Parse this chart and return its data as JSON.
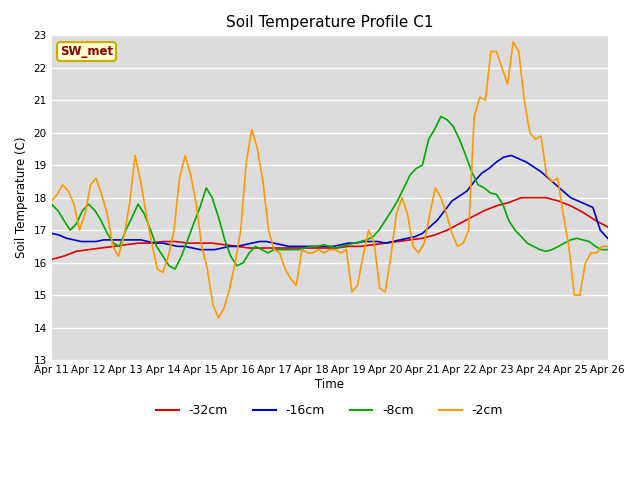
{
  "title": "Soil Temperature Profile C1",
  "xlabel": "Time",
  "ylabel": "Soil Temperature (C)",
  "annotation": "SW_met",
  "ylim": [
    13.0,
    23.0
  ],
  "yticks": [
    13.0,
    14.0,
    15.0,
    16.0,
    17.0,
    18.0,
    19.0,
    20.0,
    21.0,
    22.0,
    23.0
  ],
  "x_labels": [
    "Apr 11",
    "Apr 12",
    "Apr 13",
    "Apr 14",
    "Apr 15",
    "Apr 16",
    "Apr 17",
    "Apr 18",
    "Apr 19",
    "Apr 20",
    "Apr 21",
    "Apr 22",
    "Apr 23",
    "Apr 24",
    "Apr 25",
    "Apr 26"
  ],
  "background_color": "#dcdcdc",
  "series": {
    "-32cm": {
      "color": "#dd0000",
      "x": [
        0,
        0.33,
        0.67,
        1,
        1.33,
        1.67,
        2,
        2.33,
        2.67,
        3,
        3.33,
        3.67,
        4,
        4.33,
        4.67,
        5,
        5.33,
        5.67,
        6,
        6.33,
        6.67,
        7,
        7.33,
        7.67,
        8,
        8.33,
        8.67,
        9,
        9.33,
        9.67,
        10,
        10.33,
        10.67,
        11,
        11.33,
        11.67,
        12,
        12.33,
        12.67,
        13,
        13.33,
        13.67,
        14,
        14.33,
        14.67,
        15
      ],
      "y": [
        16.1,
        16.2,
        16.35,
        16.4,
        16.45,
        16.5,
        16.55,
        16.6,
        16.6,
        16.65,
        16.65,
        16.6,
        16.6,
        16.6,
        16.55,
        16.5,
        16.45,
        16.45,
        16.45,
        16.45,
        16.45,
        16.45,
        16.45,
        16.45,
        16.5,
        16.5,
        16.55,
        16.6,
        16.65,
        16.7,
        16.75,
        16.85,
        17.0,
        17.2,
        17.4,
        17.6,
        17.75,
        17.85,
        18.0,
        18.0,
        18.0,
        17.9,
        17.75,
        17.55,
        17.3,
        17.1
      ]
    },
    "-16cm": {
      "color": "#0000cc",
      "x": [
        0,
        0.2,
        0.4,
        0.6,
        0.8,
        1.0,
        1.2,
        1.4,
        1.6,
        1.8,
        2.0,
        2.2,
        2.4,
        2.6,
        2.8,
        3.0,
        3.2,
        3.4,
        3.6,
        3.8,
        4.0,
        4.2,
        4.4,
        4.6,
        4.8,
        5.0,
        5.2,
        5.4,
        5.6,
        5.8,
        6.0,
        6.2,
        6.4,
        6.6,
        6.8,
        7.0,
        7.2,
        7.4,
        7.6,
        7.8,
        8.0,
        8.2,
        8.4,
        8.6,
        8.8,
        9.0,
        9.2,
        9.4,
        9.6,
        9.8,
        10.0,
        10.2,
        10.4,
        10.6,
        10.8,
        11.0,
        11.2,
        11.4,
        11.6,
        11.8,
        12.0,
        12.2,
        12.4,
        12.6,
        12.8,
        13.0,
        13.2,
        13.4,
        13.6,
        13.8,
        14.0,
        14.2,
        14.4,
        14.6,
        14.8,
        15.0
      ],
      "y": [
        16.9,
        16.85,
        16.75,
        16.7,
        16.65,
        16.65,
        16.65,
        16.7,
        16.7,
        16.7,
        16.7,
        16.7,
        16.7,
        16.65,
        16.6,
        16.6,
        16.55,
        16.5,
        16.5,
        16.45,
        16.4,
        16.4,
        16.4,
        16.45,
        16.5,
        16.5,
        16.55,
        16.6,
        16.65,
        16.65,
        16.6,
        16.55,
        16.5,
        16.5,
        16.5,
        16.5,
        16.5,
        16.5,
        16.5,
        16.55,
        16.6,
        16.6,
        16.65,
        16.65,
        16.65,
        16.6,
        16.65,
        16.7,
        16.75,
        16.8,
        16.9,
        17.1,
        17.3,
        17.6,
        17.9,
        18.05,
        18.2,
        18.5,
        18.75,
        18.9,
        19.1,
        19.25,
        19.3,
        19.2,
        19.1,
        18.95,
        18.8,
        18.6,
        18.4,
        18.2,
        18.0,
        17.9,
        17.8,
        17.7,
        17.0,
        16.75
      ]
    },
    "-8cm": {
      "color": "#00aa00",
      "x": [
        0,
        0.17,
        0.33,
        0.5,
        0.67,
        0.83,
        1.0,
        1.17,
        1.33,
        1.5,
        1.67,
        1.83,
        2.0,
        2.17,
        2.33,
        2.5,
        2.67,
        2.83,
        3.0,
        3.17,
        3.33,
        3.5,
        3.67,
        3.83,
        4.0,
        4.17,
        4.33,
        4.5,
        4.67,
        4.83,
        5.0,
        5.17,
        5.33,
        5.5,
        5.67,
        5.83,
        6.0,
        6.17,
        6.33,
        6.5,
        6.67,
        6.83,
        7.0,
        7.17,
        7.33,
        7.5,
        7.67,
        7.83,
        8.0,
        8.17,
        8.33,
        8.5,
        8.67,
        8.83,
        9.0,
        9.17,
        9.33,
        9.5,
        9.67,
        9.83,
        10.0,
        10.17,
        10.33,
        10.5,
        10.67,
        10.83,
        11.0,
        11.17,
        11.33,
        11.5,
        11.67,
        11.83,
        12.0,
        12.17,
        12.33,
        12.5,
        12.67,
        12.83,
        13.0,
        13.17,
        13.33,
        13.5,
        13.67,
        13.83,
        14.0,
        14.17,
        14.33,
        14.5,
        14.67,
        14.83,
        15.0
      ],
      "y": [
        17.8,
        17.6,
        17.3,
        17.0,
        17.2,
        17.6,
        17.8,
        17.6,
        17.3,
        16.9,
        16.6,
        16.5,
        17.0,
        17.4,
        17.8,
        17.5,
        17.0,
        16.5,
        16.2,
        15.9,
        15.8,
        16.2,
        16.7,
        17.2,
        17.7,
        18.3,
        18.0,
        17.4,
        16.7,
        16.2,
        15.9,
        16.0,
        16.3,
        16.5,
        16.4,
        16.3,
        16.4,
        16.4,
        16.4,
        16.4,
        16.4,
        16.45,
        16.5,
        16.5,
        16.55,
        16.5,
        16.45,
        16.5,
        16.55,
        16.6,
        16.65,
        16.7,
        16.8,
        17.0,
        17.3,
        17.6,
        17.9,
        18.3,
        18.7,
        18.9,
        19.0,
        19.8,
        20.1,
        20.5,
        20.4,
        20.2,
        19.8,
        19.3,
        18.8,
        18.4,
        18.3,
        18.15,
        18.1,
        17.8,
        17.3,
        17.0,
        16.8,
        16.6,
        16.5,
        16.4,
        16.35,
        16.4,
        16.5,
        16.6,
        16.7,
        16.75,
        16.7,
        16.65,
        16.5,
        16.4,
        16.4
      ]
    },
    "-2cm": {
      "color": "#ff9900",
      "x": [
        0,
        0.15,
        0.3,
        0.45,
        0.6,
        0.75,
        0.9,
        1.05,
        1.2,
        1.35,
        1.5,
        1.65,
        1.8,
        1.95,
        2.1,
        2.25,
        2.4,
        2.55,
        2.7,
        2.85,
        3.0,
        3.15,
        3.3,
        3.45,
        3.6,
        3.75,
        3.9,
        4.05,
        4.2,
        4.35,
        4.5,
        4.65,
        4.8,
        4.95,
        5.1,
        5.25,
        5.4,
        5.55,
        5.7,
        5.85,
        6.0,
        6.15,
        6.3,
        6.45,
        6.6,
        6.75,
        6.9,
        7.05,
        7.2,
        7.35,
        7.5,
        7.65,
        7.8,
        7.95,
        8.1,
        8.25,
        8.4,
        8.55,
        8.7,
        8.85,
        9.0,
        9.15,
        9.3,
        9.45,
        9.6,
        9.75,
        9.9,
        10.05,
        10.2,
        10.35,
        10.5,
        10.65,
        10.8,
        10.95,
        11.1,
        11.25,
        11.4,
        11.55,
        11.7,
        11.85,
        12.0,
        12.15,
        12.3,
        12.45,
        12.6,
        12.75,
        12.9,
        13.05,
        13.2,
        13.35,
        13.5,
        13.65,
        13.8,
        13.95,
        14.1,
        14.25,
        14.4,
        14.55,
        14.7,
        14.85,
        15.0
      ],
      "y": [
        17.9,
        18.1,
        18.4,
        18.2,
        17.8,
        17.0,
        17.5,
        18.4,
        18.6,
        18.1,
        17.5,
        16.5,
        16.2,
        16.8,
        17.8,
        19.3,
        18.5,
        17.5,
        16.6,
        15.8,
        15.7,
        16.2,
        17.0,
        18.6,
        19.3,
        18.7,
        17.8,
        16.5,
        15.8,
        14.7,
        14.3,
        14.6,
        15.2,
        16.0,
        17.0,
        19.1,
        20.1,
        19.5,
        18.5,
        17.0,
        16.4,
        16.3,
        15.8,
        15.5,
        15.3,
        16.4,
        16.3,
        16.3,
        16.4,
        16.3,
        16.4,
        16.4,
        16.3,
        16.4,
        15.1,
        15.3,
        16.2,
        17.0,
        16.6,
        15.2,
        15.1,
        16.2,
        17.5,
        18.0,
        17.5,
        16.5,
        16.3,
        16.6,
        17.5,
        18.3,
        18.0,
        17.5,
        16.9,
        16.5,
        16.6,
        17.0,
        20.5,
        21.1,
        21.0,
        22.5,
        22.5,
        22.0,
        21.5,
        22.8,
        22.5,
        21.0,
        20.0,
        19.8,
        19.9,
        18.7,
        18.5,
        18.6,
        17.5,
        16.5,
        15.0,
        15.0,
        16.0,
        16.3,
        16.3,
        16.5,
        16.5
      ]
    }
  },
  "legend": [
    {
      "label": "-32cm",
      "color": "#dd0000"
    },
    {
      "label": "-16cm",
      "color": "#0000cc"
    },
    {
      "label": "-8cm",
      "color": "#00aa00"
    },
    {
      "label": "-2cm",
      "color": "#ff9900"
    }
  ]
}
